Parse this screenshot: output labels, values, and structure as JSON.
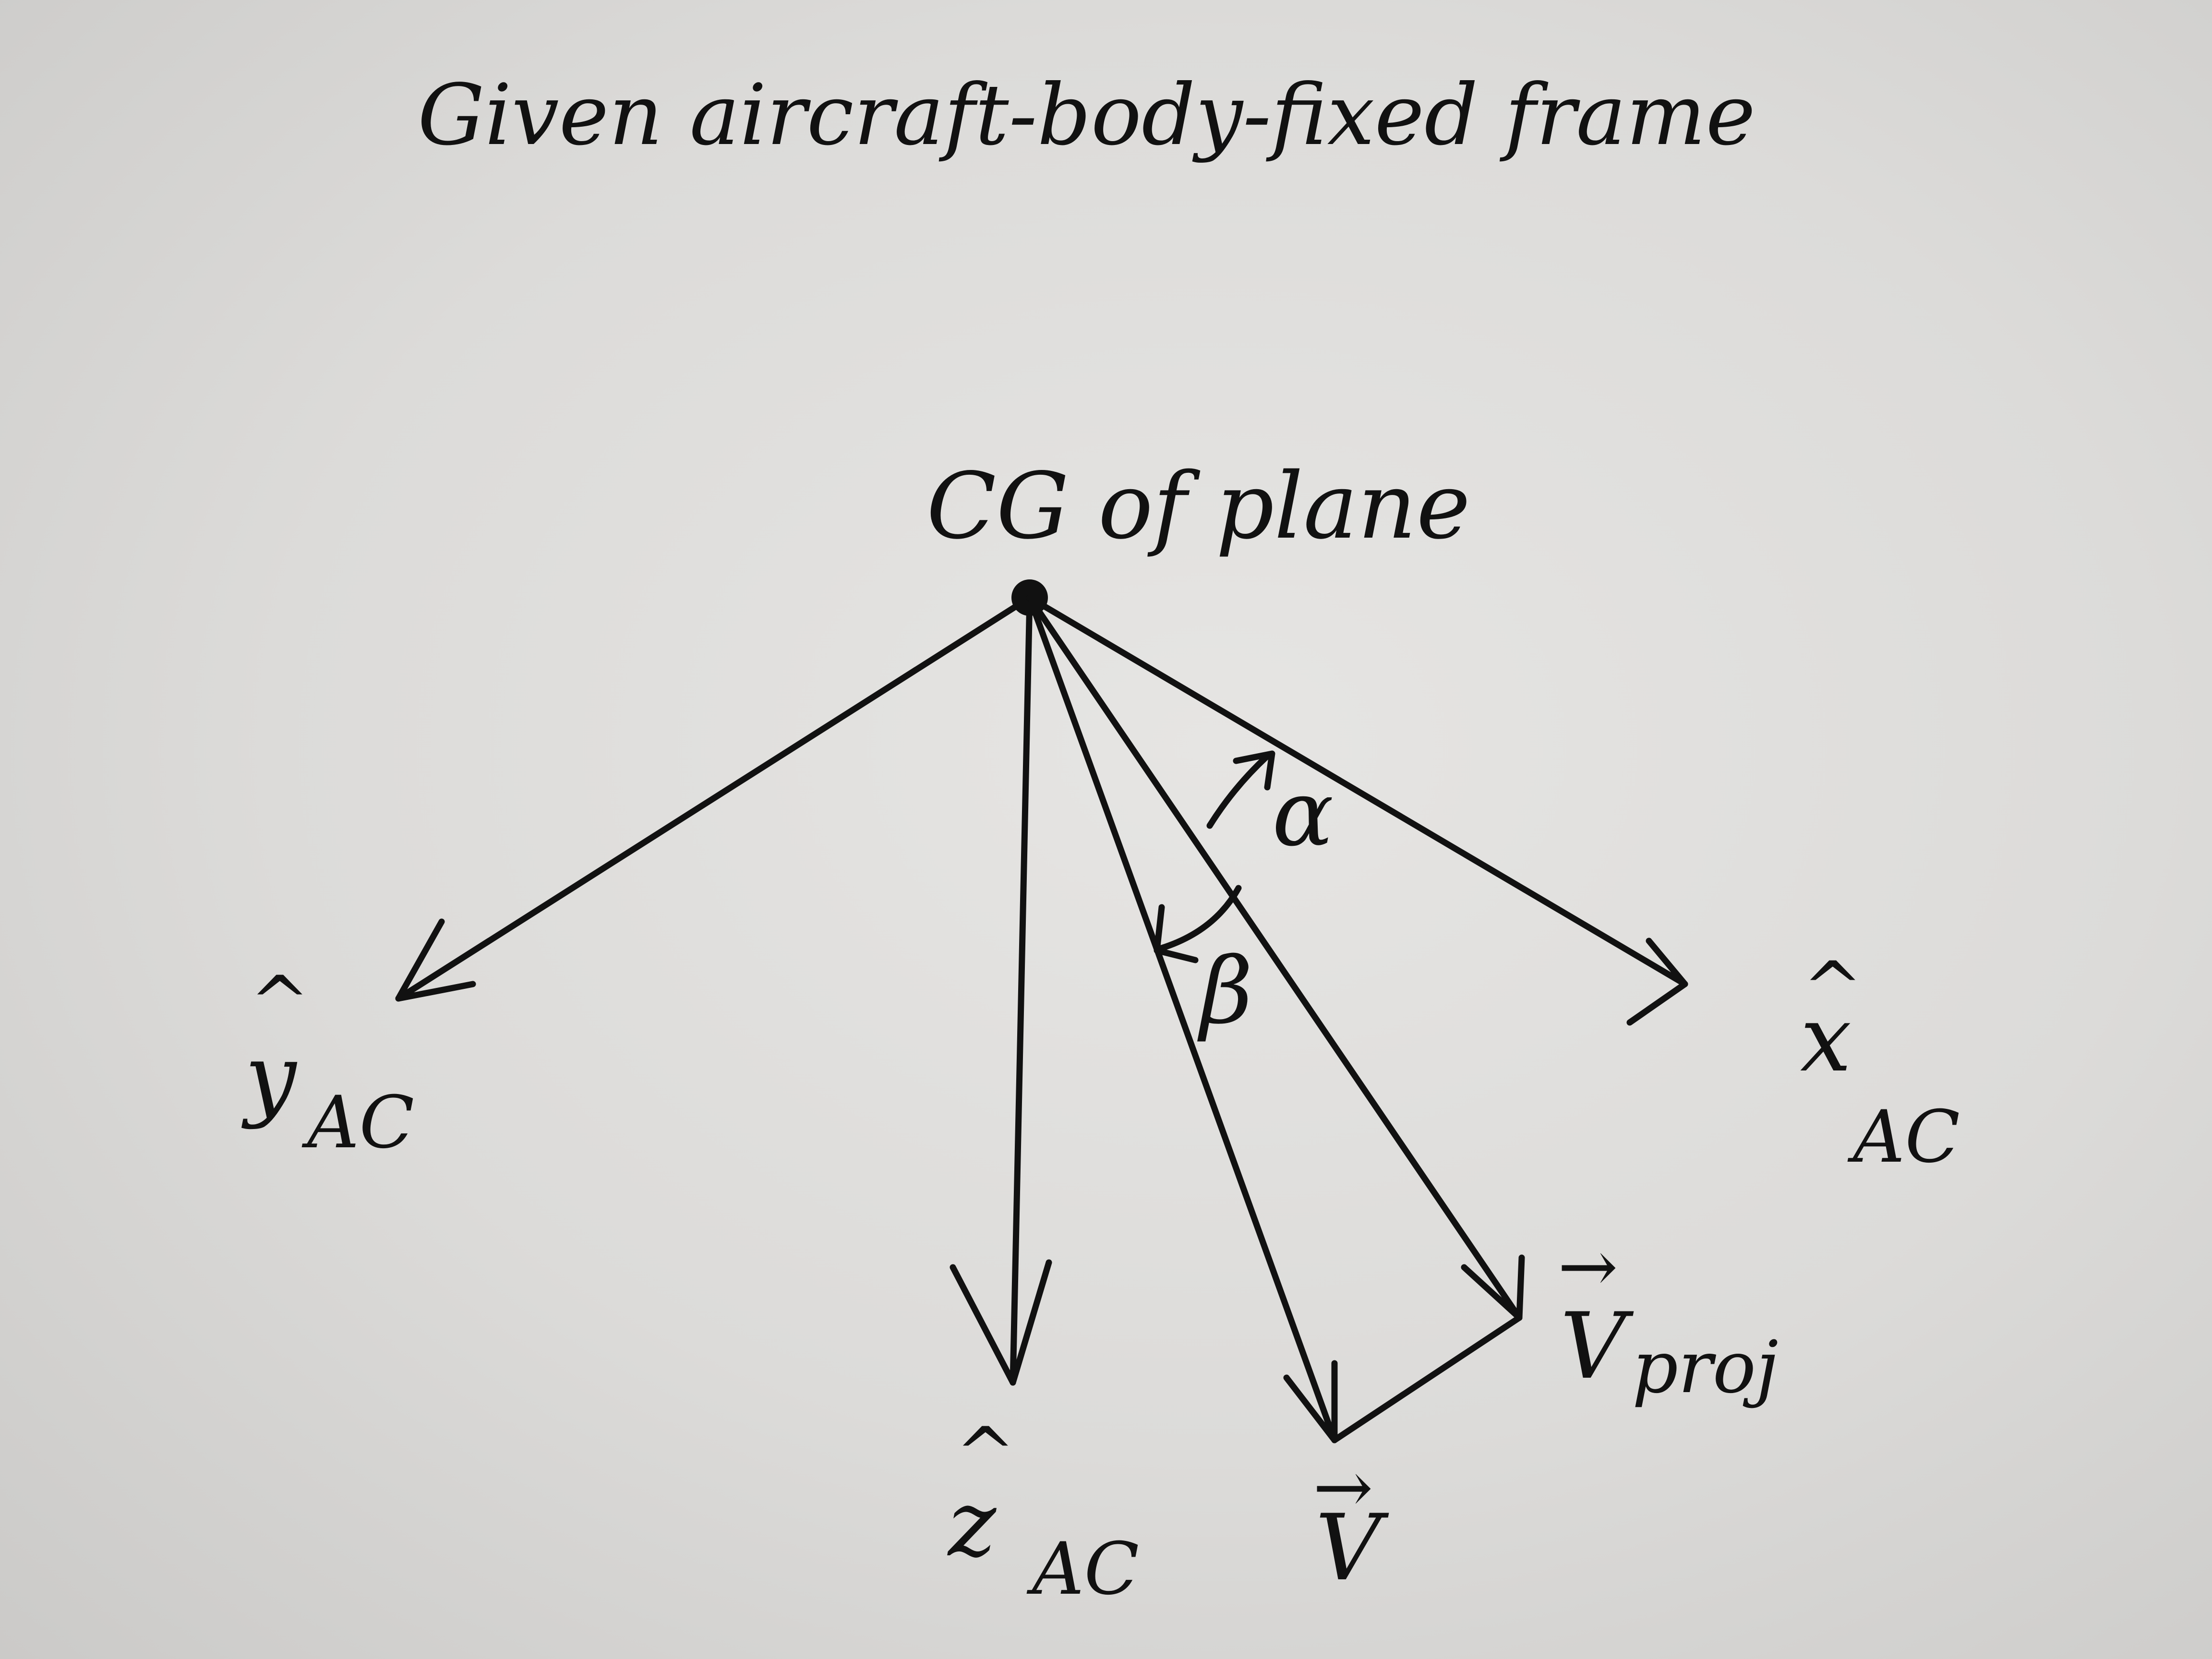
{
  "title": "Given aircraft-body-fixed frame",
  "origin_label": "CG of plane",
  "axes": {
    "y": {
      "hat": "^",
      "letter": "y",
      "sub": "AC"
    },
    "z": {
      "hat": "^",
      "letter": "z",
      "sub": "AC"
    },
    "x": {
      "hat": "^",
      "letter": "x",
      "sub": "AC"
    }
  },
  "vectors": {
    "v": {
      "arrow": "→",
      "letter": "V",
      "sub": ""
    },
    "vproj": {
      "arrow": "→",
      "letter": "V",
      "sub": "proj"
    }
  },
  "angles": {
    "alpha": "α",
    "beta": "β"
  }
}
